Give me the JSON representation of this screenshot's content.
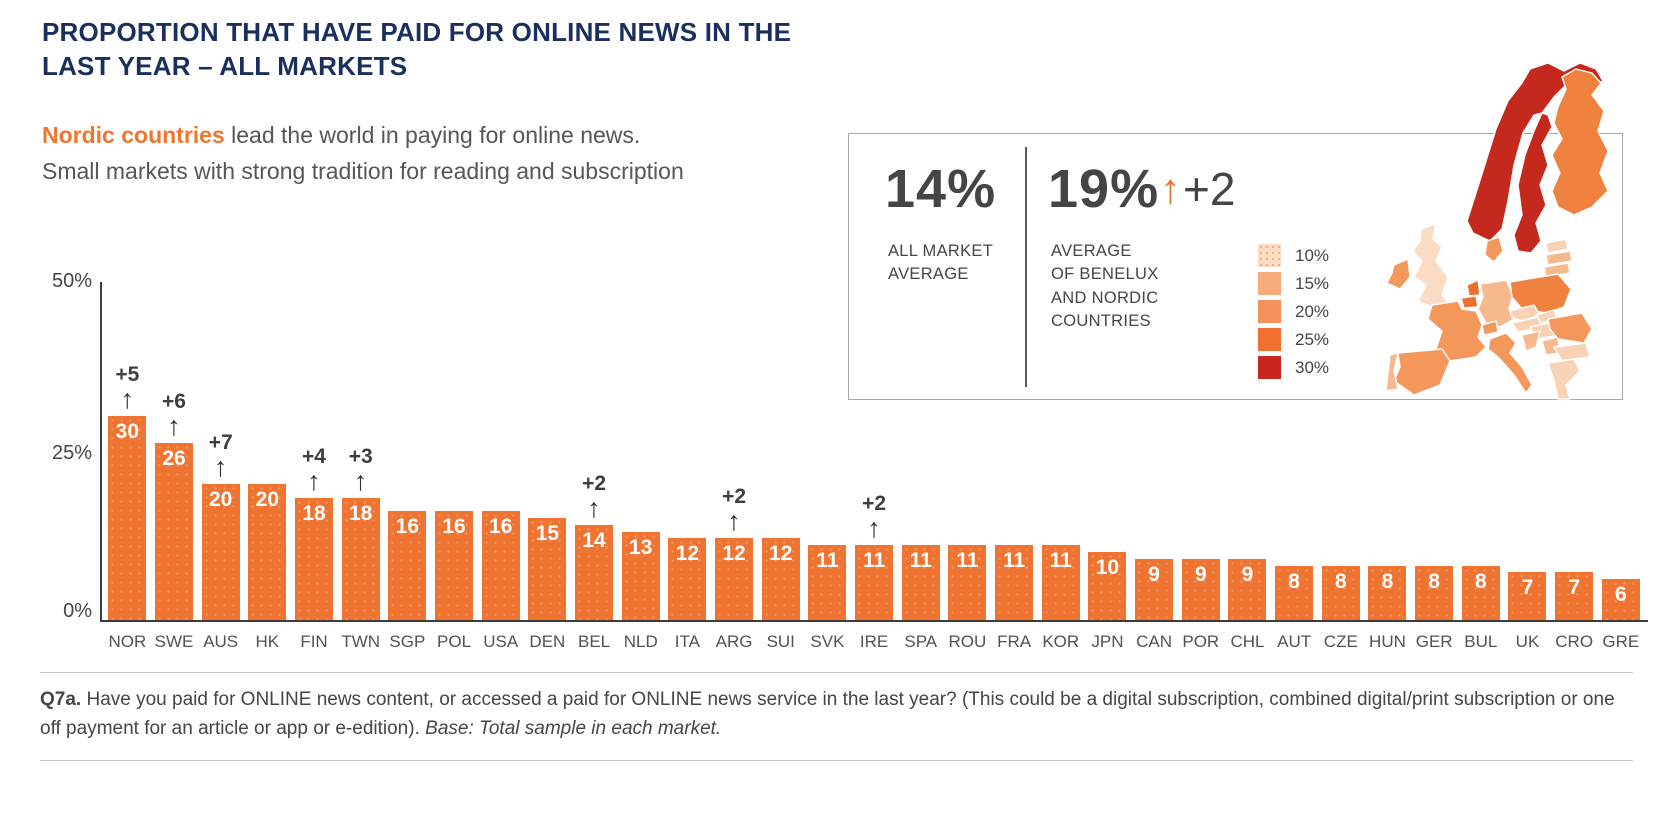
{
  "title": {
    "line1": "PROPORTION THAT HAVE PAID FOR ONLINE NEWS IN THE",
    "line2": "LAST YEAR – ALL MARKETS"
  },
  "subtitle": {
    "highlight": "Nordic countries",
    "rest": " lead the world in paying for online news.",
    "line2": "Small markets with strong tradition for reading and subscription"
  },
  "stats": {
    "all_market": {
      "value": "14%",
      "label": "ALL MARKET\nAVERAGE"
    },
    "benelux_nordic": {
      "value": "19%",
      "change": "+2",
      "arrow": "↑",
      "label": "AVERAGE\nOF BENELUX\nAND NORDIC\nCOUNTRIES"
    }
  },
  "legend": {
    "items": [
      {
        "label": "10%",
        "color": "#FADCC5",
        "dotted": true
      },
      {
        "label": "15%",
        "color": "#F7AC7C",
        "dotted": false
      },
      {
        "label": "20%",
        "color": "#F3915A",
        "dotted": false
      },
      {
        "label": "25%",
        "color": "#EF7030",
        "dotted": false
      },
      {
        "label": "30%",
        "color": "#C9271E",
        "dotted": false
      }
    ]
  },
  "chart_data": {
    "type": "bar",
    "title": "Proportion that have paid for online news in the last year – all markets",
    "xlabel": "",
    "ylabel": "",
    "ylim": [
      0,
      50
    ],
    "yticks": [
      "50%",
      "25%",
      "0%"
    ],
    "grid": false,
    "bar_color": "#EF7331",
    "categories": [
      "NOR",
      "SWE",
      "AUS",
      "HK",
      "FIN",
      "TWN",
      "SGP",
      "POL",
      "USA",
      "DEN",
      "BEL",
      "NLD",
      "ITA",
      "ARG",
      "SUI",
      "SVK",
      "IRE",
      "SPA",
      "ROU",
      "FRA",
      "KOR",
      "JPN",
      "CAN",
      "POR",
      "CHL",
      "AUT",
      "CZE",
      "HUN",
      "GER",
      "BUL",
      "UK",
      "CRO",
      "GRE"
    ],
    "values": [
      30,
      26,
      20,
      20,
      18,
      18,
      16,
      16,
      16,
      15,
      14,
      13,
      12,
      12,
      12,
      11,
      11,
      11,
      11,
      11,
      11,
      10,
      9,
      9,
      9,
      8,
      8,
      8,
      8,
      8,
      7,
      7,
      6
    ],
    "changes": [
      "+5",
      "+6",
      "+7",
      "",
      "+4",
      "+3",
      "",
      "",
      "",
      "",
      "+2",
      "",
      "",
      "+2",
      "",
      "",
      "+2",
      "",
      "",
      "",
      "",
      "",
      "",
      "",
      "",
      "",
      "",
      "",
      "",
      "",
      "",
      "",
      ""
    ],
    "change_arrow": "↑"
  },
  "map": {
    "regions": {
      "norway": "#C5281C",
      "sweden": "#C5281C",
      "finland": "#F0823F",
      "denmark": "#F3975B",
      "uk": "#FADCC5",
      "ireland": "#F3975B",
      "netherlands": "#EF6F2E",
      "belgium": "#EF6F2E",
      "germany": "#F6B98E",
      "poland": "#F0823F",
      "france": "#F3975B",
      "spain": "#F3975B",
      "portugal": "#F6B98E",
      "italy": "#F3975B",
      "switzerland": "#F3975B",
      "austria": "#F8D2B4",
      "czech": "#F8D2B4",
      "slovakia": "#F8D2B4",
      "hungary": "#F8D2B4",
      "romania": "#F3975B",
      "bulgaria": "#F8D2B4",
      "croatia": "#F6B98E",
      "serbia": "#F6B98E",
      "greece": "#F8D2B4",
      "estonia": "#F8D2B4",
      "latvia": "#F6B98E",
      "lithuania": "#F6B98E"
    }
  },
  "footnote": {
    "prefix": "Q7a.",
    "text": " Have you paid for ONLINE news content, or accessed a paid for ONLINE news service in the last year? (This could be a digital subscription, combined digital/print subscription or one off payment for an article or app or e-edition). ",
    "base": "Base: Total sample in each market."
  },
  "colors": {
    "title_navy": "#1B2F5E",
    "accent_orange": "#F0762F",
    "text_gray": "#55565A",
    "axis": "#3C3C3E"
  }
}
